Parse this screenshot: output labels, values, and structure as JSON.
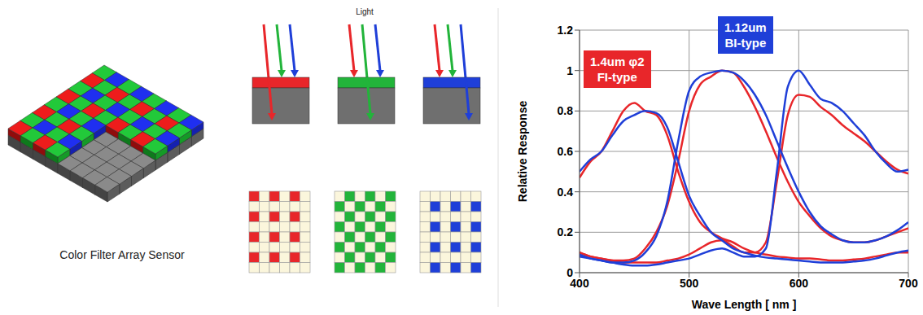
{
  "diagram": {
    "caption": "Color Filter Array Sensor",
    "light_label": "Light"
  },
  "chart_data": {
    "type": "line",
    "x_label": "Wave Length   [ nm ]",
    "y_label": "Relative Response",
    "x": [
      400,
      410,
      420,
      430,
      440,
      450,
      460,
      470,
      480,
      490,
      500,
      510,
      520,
      530,
      540,
      550,
      560,
      570,
      580,
      590,
      600,
      610,
      620,
      630,
      640,
      650,
      660,
      670,
      680,
      690,
      700
    ],
    "series": [
      {
        "color": "#e8262a",
        "values": [
          0.47,
          0.55,
          0.6,
          0.7,
          0.8,
          0.84,
          0.8,
          0.78,
          0.68,
          0.5,
          0.35,
          0.25,
          0.2,
          0.17,
          0.15,
          0.12,
          0.1,
          0.09,
          0.08,
          0.075,
          0.07,
          0.07,
          0.065,
          0.06,
          0.06,
          0.065,
          0.07,
          0.08,
          0.09,
          0.1,
          0.1
        ]
      },
      {
        "color": "#e8262a",
        "values": [
          0.1,
          0.08,
          0.07,
          0.06,
          0.06,
          0.07,
          0.12,
          0.2,
          0.33,
          0.55,
          0.8,
          0.93,
          0.97,
          1.0,
          0.99,
          0.92,
          0.82,
          0.7,
          0.57,
          0.45,
          0.35,
          0.28,
          0.22,
          0.18,
          0.16,
          0.15,
          0.15,
          0.16,
          0.18,
          0.2,
          0.22
        ]
      },
      {
        "color": "#e8262a",
        "values": [
          0.1,
          0.08,
          0.07,
          0.06,
          0.05,
          0.05,
          0.05,
          0.05,
          0.06,
          0.07,
          0.09,
          0.12,
          0.15,
          0.16,
          0.13,
          0.1,
          0.1,
          0.15,
          0.45,
          0.78,
          0.88,
          0.87,
          0.82,
          0.78,
          0.73,
          0.69,
          0.65,
          0.6,
          0.55,
          0.51,
          0.49
        ]
      },
      {
        "color": "#1f3fd8",
        "values": [
          0.5,
          0.56,
          0.6,
          0.68,
          0.75,
          0.78,
          0.8,
          0.79,
          0.72,
          0.55,
          0.38,
          0.28,
          0.2,
          0.16,
          0.12,
          0.1,
          0.085,
          0.075,
          0.07,
          0.065,
          0.06,
          0.055,
          0.05,
          0.05,
          0.05,
          0.055,
          0.06,
          0.07,
          0.085,
          0.1,
          0.11
        ]
      },
      {
        "color": "#1f3fd8",
        "values": [
          0.08,
          0.07,
          0.06,
          0.05,
          0.05,
          0.06,
          0.1,
          0.18,
          0.35,
          0.65,
          0.9,
          0.97,
          0.99,
          1.0,
          0.99,
          0.95,
          0.88,
          0.78,
          0.65,
          0.52,
          0.4,
          0.3,
          0.23,
          0.19,
          0.16,
          0.15,
          0.15,
          0.16,
          0.18,
          0.21,
          0.25
        ]
      },
      {
        "color": "#1f3fd8",
        "values": [
          0.09,
          0.07,
          0.06,
          0.05,
          0.04,
          0.035,
          0.035,
          0.04,
          0.05,
          0.06,
          0.07,
          0.09,
          0.11,
          0.12,
          0.1,
          0.08,
          0.08,
          0.12,
          0.5,
          0.92,
          1.0,
          0.93,
          0.86,
          0.84,
          0.8,
          0.74,
          0.68,
          0.6,
          0.54,
          0.5,
          0.51
        ]
      }
    ],
    "xlim": [
      400,
      700
    ],
    "xticks": [
      400,
      500,
      600,
      700
    ],
    "ylim": [
      0,
      1.2
    ],
    "yticks": [
      0,
      0.2,
      0.4,
      0.6,
      0.8,
      1,
      1.2
    ],
    "grid": true,
    "annotations": [
      {
        "lines": [
          "1.4um φ2",
          "FI-type"
        ],
        "color": "#e8262a"
      },
      {
        "lines": [
          "1.12um",
          "BI-type"
        ],
        "color": "#1f3fd8"
      }
    ]
  }
}
